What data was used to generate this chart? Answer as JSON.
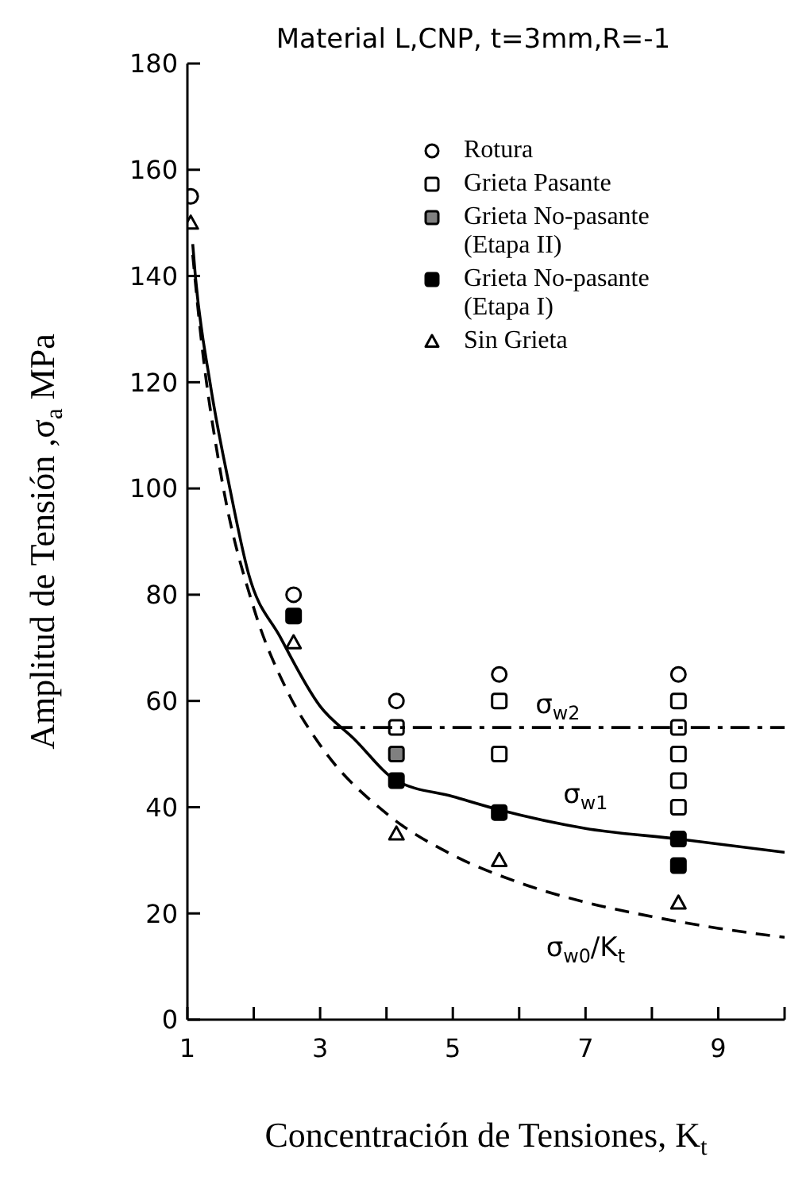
{
  "chart_data": {
    "type": "scatter",
    "title": "Material L,CNP, t=3mm,R=-1",
    "xlabel": "Concentración de Tensiones, K$_{t}$",
    "ylabel": "Amplitud de Tensión ,σ$_{a}$   MPa",
    "xlim": [
      1,
      10
    ],
    "xticks": [
      1,
      {
        "value": 2,
        "label": null
      },
      3,
      {
        "value": 4,
        "label": null
      },
      5,
      {
        "value": 6,
        "label": null
      },
      7,
      {
        "value": 8,
        "label": null
      },
      9,
      {
        "value": 10,
        "label": null
      }
    ],
    "ylim": [
      0,
      180
    ],
    "yticks": [
      0,
      20,
      40,
      60,
      80,
      100,
      120,
      140,
      160,
      180
    ],
    "grid": false,
    "legend": "top right",
    "series": [
      {
        "name": "Rotura",
        "marker": "circle",
        "color": "#000000",
        "x": [
          1.05,
          2.6,
          4.15,
          5.7,
          8.4
        ],
        "values": [
          155,
          80,
          60,
          65,
          65
        ]
      },
      {
        "name": "Grieta Pasante",
        "marker": "square",
        "color": "#000000",
        "x": [
          4.15,
          5.7,
          5.7,
          8.4,
          8.4,
          8.4,
          8.4,
          8.4
        ],
        "values": [
          55,
          60,
          50,
          60,
          55,
          50,
          45,
          40
        ]
      },
      {
        "name": "Grieta No-pasante (Etapa II)",
        "marker": "square",
        "color": "#000000",
        "x": [
          4.15
        ],
        "values": [
          50
        ]
      },
      {
        "name": "Grieta No-pasante (Etapa I)",
        "marker": "square",
        "color": "#000000",
        "x": [
          2.6,
          4.15,
          5.7,
          8.4,
          8.4
        ],
        "values": [
          76,
          45,
          39,
          34,
          29
        ]
      },
      {
        "name": "Sin Grieta",
        "marker": "triangle",
        "color": "#000000",
        "x": [
          1.05,
          2.6,
          4.15,
          5.7,
          8.4
        ],
        "values": [
          150,
          71,
          35,
          30,
          22
        ]
      },
      {
        "name": "σ$_{w1}$",
        "type": "line",
        "line_style": "solid",
        "color": "#000000",
        "x": [
          1.08,
          1.12,
          1.34,
          1.64,
          1.92,
          2.4,
          3,
          3.5,
          4.15,
          5,
          5.7,
          7,
          8.4,
          10
        ],
        "values": [
          146,
          140,
          120,
          100,
          84,
          72,
          59,
          53,
          45,
          42,
          39.5,
          36,
          34,
          31.5
        ]
      },
      {
        "name": "σ$_{w0}$/K$_{t}$",
        "type": "line",
        "line_style": "dashed",
        "color": "#000000",
        "x": [
          1.08,
          1.2,
          1.5,
          2,
          2.5,
          3,
          4,
          5,
          6,
          7,
          8,
          9,
          10
        ],
        "values": [
          144,
          129,
          103,
          77.5,
          62,
          51.7,
          38.8,
          31,
          25.8,
          22.1,
          19.4,
          17.2,
          15.5
        ]
      },
      {
        "name": "σ$_{w2}$",
        "type": "line",
        "line_style": "dashdot",
        "color": "#000000",
        "x": [
          3.2,
          10
        ],
        "values": [
          55,
          55
        ]
      }
    ]
  }
}
